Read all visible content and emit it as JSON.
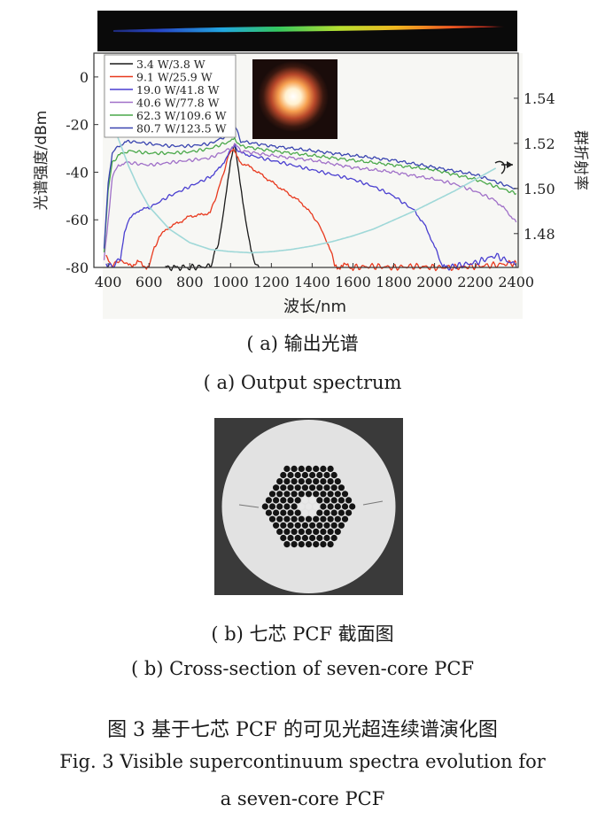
{
  "chart_data": {
    "type": "line",
    "title": "",
    "xlabel": "波长/nm",
    "ylabel": "光谱强度/dBm",
    "y2label": "群折射率",
    "xlim": [
      330,
      2410
    ],
    "ylim": [
      -80,
      10
    ],
    "y2lim": [
      1.465,
      1.56
    ],
    "xticks": [
      400,
      600,
      800,
      1000,
      1200,
      1400,
      1600,
      1800,
      2000,
      2200,
      2400
    ],
    "yticks": [
      0,
      -20,
      -40,
      -60,
      -80
    ],
    "y2ticks": [
      1.54,
      1.52,
      1.5,
      1.48
    ],
    "y2ticklabels": [
      "1.54",
      "1.52",
      "1.50",
      "1.48"
    ],
    "legend_position": "top-left",
    "series": [
      {
        "name": "3.4 W/3.8 W",
        "color": "#1a1a1a",
        "x": [
          680,
          800,
          900,
          940,
          960,
          980,
          1000,
          1020,
          1040,
          1060,
          1080,
          1100,
          1120,
          1140
        ],
        "y": [
          -80,
          -80,
          -79.5,
          -70,
          -60,
          -48,
          -36,
          -28,
          -40,
          -52,
          -63,
          -72,
          -79,
          -80
        ]
      },
      {
        "name": "9.1 W/25.9 W",
        "color": "#e8391e",
        "x": [
          390,
          420,
          460,
          500,
          550,
          600,
          620,
          650,
          700,
          750,
          800,
          850,
          900,
          930,
          960,
          990,
          1015,
          1030,
          1050,
          1100,
          1150,
          1200,
          1250,
          1300,
          1350,
          1400,
          1440,
          1480,
          1510,
          1530,
          1550,
          1600,
          1700,
          1800,
          1900,
          2000,
          2100,
          2200,
          2300,
          2400
        ],
        "y": [
          -76,
          -79,
          -77,
          -79,
          -78,
          -80,
          -74,
          -67,
          -63,
          -61,
          -58.5,
          -58,
          -57,
          -50,
          -42,
          -33,
          -30,
          -33,
          -36,
          -38,
          -41,
          -44,
          -47,
          -50,
          -53,
          -58,
          -63,
          -71,
          -78,
          -80,
          -79,
          -80,
          -79.5,
          -80,
          -79.5,
          -80,
          -80,
          -79.5,
          -79,
          -78
        ]
      },
      {
        "name": "19.0 W/41.8 W",
        "color": "#4a3fd0",
        "x": [
          390,
          420,
          460,
          480,
          500,
          550,
          600,
          700,
          800,
          900,
          950,
          1000,
          1020,
          1050,
          1100,
          1200,
          1300,
          1400,
          1500,
          1600,
          1700,
          1800,
          1900,
          1950,
          2000,
          2040,
          2060,
          2100,
          2200,
          2300,
          2400
        ],
        "y": [
          -78,
          -80,
          -76,
          -65,
          -60,
          -56,
          -55,
          -50,
          -46,
          -42,
          -38,
          -31,
          -29,
          -32,
          -33,
          -35,
          -37,
          -39,
          -41,
          -43,
          -46,
          -50,
          -56,
          -62,
          -71,
          -80,
          -80,
          -79.5,
          -78,
          -75,
          -79
        ]
      },
      {
        "name": "40.6 W/77.8 W",
        "color": "#a070c8",
        "x": [
          380,
          400,
          420,
          450,
          500,
          600,
          700,
          800,
          900,
          1000,
          1020,
          1050,
          1200,
          1400,
          1600,
          1800,
          2000,
          2100,
          2200,
          2300,
          2350,
          2400
        ],
        "y": [
          -76,
          -60,
          -42,
          -37,
          -36,
          -37,
          -36,
          -35,
          -34,
          -30,
          -28,
          -31,
          -33,
          -35,
          -38,
          -40,
          -43,
          -45,
          -48,
          -52,
          -56,
          -61
        ]
      },
      {
        "name": "62.3 W/109.6 W",
        "color": "#4aa84a",
        "x": [
          380,
          400,
          420,
          450,
          500,
          600,
          700,
          800,
          900,
          1000,
          1020,
          1050,
          1200,
          1400,
          1600,
          1800,
          2000,
          2200,
          2300,
          2400
        ],
        "y": [
          -74,
          -48,
          -36,
          -33,
          -31,
          -32,
          -32,
          -31.5,
          -30,
          -27,
          -26,
          -29,
          -31,
          -33,
          -35,
          -37,
          -39,
          -43,
          -46,
          -49
        ]
      },
      {
        "name": "80.7 W/123.5 W",
        "color": "#3a45b0",
        "x": [
          380,
          400,
          420,
          450,
          500,
          600,
          700,
          800,
          900,
          1000,
          1020,
          1050,
          1200,
          1400,
          1600,
          1800,
          2000,
          2200,
          2300,
          2400
        ],
        "y": [
          -72,
          -44,
          -32,
          -29,
          -27,
          -28,
          -29,
          -29,
          -28,
          -24,
          -20,
          -27,
          -29,
          -31,
          -33,
          -35,
          -38,
          -41,
          -44,
          -47
        ]
      },
      {
        "name": "群折射率",
        "color": "#9fd8d8",
        "axis": "right",
        "x": [
          400,
          450,
          500,
          550,
          600,
          700,
          800,
          900,
          1000,
          1100,
          1200,
          1300,
          1400,
          1500,
          1600,
          1700,
          1800,
          1900,
          2000,
          2100,
          2200,
          2300
        ],
        "y": [
          1.537,
          1.522,
          1.51,
          1.5,
          1.492,
          1.482,
          1.476,
          1.473,
          1.472,
          1.4715,
          1.472,
          1.473,
          1.4745,
          1.4765,
          1.479,
          1.482,
          1.486,
          1.49,
          1.4945,
          1.499,
          1.504,
          1.509
        ]
      }
    ],
    "inset_top": "光谱带 (可见光超连续谱照片)",
    "inset_spot": "输出光斑"
  },
  "captions": {
    "a_zh": "( a)  输出光谱",
    "a_en": "( a)  Output spectrum",
    "b_zh": "( b)  七芯 PCF 截面图",
    "b_en": "( b)  Cross-section of seven-core PCF",
    "fig_zh": "图 3    基于七芯 PCF 的可见光超连续谱演化图",
    "fig_en_line1": "Fig. 3    Visible supercontinuum spectra evolution for",
    "fig_en_line2": "a seven-core PCF"
  },
  "colors": {
    "plot_bg": "#fafaf8",
    "frame": "#333333",
    "cladding": "#e2e2e2",
    "holes": "#141414"
  }
}
